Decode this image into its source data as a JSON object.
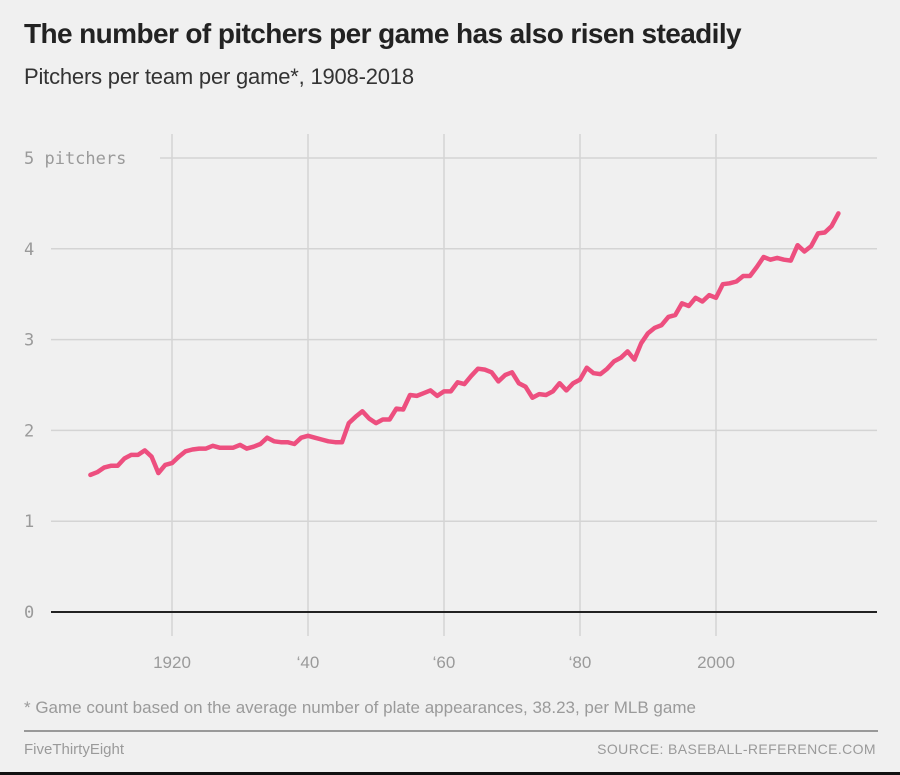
{
  "header": {
    "title": "The number of pitchers per game has also risen steadily",
    "subtitle": "Pitchers per team per game*, 1908-2018"
  },
  "footnote": "* Game count based on the average number of plate appearances, 38.23, per MLB game",
  "footer": {
    "brand": "FiveThirtyEight",
    "source": "SOURCE: BASEBALL-REFERENCE.COM"
  },
  "colors": {
    "line": "#ED4F7F",
    "grid": "#d4d4d4",
    "baseline": "#222222",
    "background": "#f0f0f0"
  },
  "chart_data": {
    "type": "line",
    "title": "The number of pitchers per game has also risen steadily",
    "subtitle": "Pitchers per team per game*, 1908-2018",
    "xlabel": "",
    "ylabel": "pitchers",
    "xlim": [
      1908,
      2018
    ],
    "ylim": [
      0,
      5
    ],
    "grid": true,
    "legend": "none",
    "x_ticks": [
      1920,
      1940,
      1960,
      1980,
      2000
    ],
    "x_tick_labels": [
      "1920",
      "‘40",
      "‘60",
      "‘80",
      "2000"
    ],
    "y_ticks": [
      0,
      1,
      2,
      3,
      4,
      5
    ],
    "y_tick_labels": [
      "0",
      "1",
      "2",
      "3",
      "4",
      "5 pitchers"
    ],
    "series": [
      {
        "name": "Pitchers per team per game",
        "x": [
          1908,
          1909,
          1910,
          1911,
          1912,
          1913,
          1914,
          1915,
          1916,
          1917,
          1918,
          1919,
          1920,
          1921,
          1922,
          1923,
          1924,
          1925,
          1926,
          1927,
          1928,
          1929,
          1930,
          1931,
          1932,
          1933,
          1934,
          1935,
          1936,
          1937,
          1938,
          1939,
          1940,
          1941,
          1942,
          1943,
          1944,
          1945,
          1946,
          1947,
          1948,
          1949,
          1950,
          1951,
          1952,
          1953,
          1954,
          1955,
          1956,
          1957,
          1958,
          1959,
          1960,
          1961,
          1962,
          1963,
          1964,
          1965,
          1966,
          1967,
          1968,
          1969,
          1970,
          1971,
          1972,
          1973,
          1974,
          1975,
          1976,
          1977,
          1978,
          1979,
          1980,
          1981,
          1982,
          1983,
          1984,
          1985,
          1986,
          1987,
          1988,
          1989,
          1990,
          1991,
          1992,
          1993,
          1994,
          1995,
          1996,
          1997,
          1998,
          1999,
          2000,
          2001,
          2002,
          2003,
          2004,
          2005,
          2006,
          2007,
          2008,
          2009,
          2010,
          2011,
          2012,
          2013,
          2014,
          2015,
          2016,
          2017,
          2018
        ],
        "values": [
          1.51,
          1.54,
          1.59,
          1.61,
          1.61,
          1.69,
          1.73,
          1.73,
          1.78,
          1.71,
          1.53,
          1.62,
          1.64,
          1.71,
          1.77,
          1.79,
          1.8,
          1.8,
          1.83,
          1.81,
          1.81,
          1.81,
          1.84,
          1.8,
          1.82,
          1.85,
          1.92,
          1.88,
          1.87,
          1.87,
          1.85,
          1.92,
          1.94,
          1.92,
          1.9,
          1.88,
          1.87,
          1.87,
          2.08,
          2.15,
          2.21,
          2.13,
          2.08,
          2.12,
          2.12,
          2.24,
          2.23,
          2.39,
          2.38,
          2.41,
          2.44,
          2.38,
          2.43,
          2.43,
          2.53,
          2.51,
          2.6,
          2.68,
          2.67,
          2.64,
          2.54,
          2.61,
          2.64,
          2.52,
          2.48,
          2.36,
          2.4,
          2.39,
          2.43,
          2.52,
          2.44,
          2.52,
          2.56,
          2.69,
          2.63,
          2.62,
          2.68,
          2.76,
          2.8,
          2.87,
          2.78,
          2.96,
          3.07,
          3.13,
          3.16,
          3.25,
          3.27,
          3.4,
          3.37,
          3.46,
          3.42,
          3.49,
          3.46,
          3.61,
          3.62,
          3.64,
          3.7,
          3.7,
          3.8,
          3.91,
          3.88,
          3.9,
          3.88,
          3.87,
          4.04,
          3.97,
          4.03,
          4.17,
          4.18,
          4.25,
          4.39
        ]
      }
    ]
  }
}
